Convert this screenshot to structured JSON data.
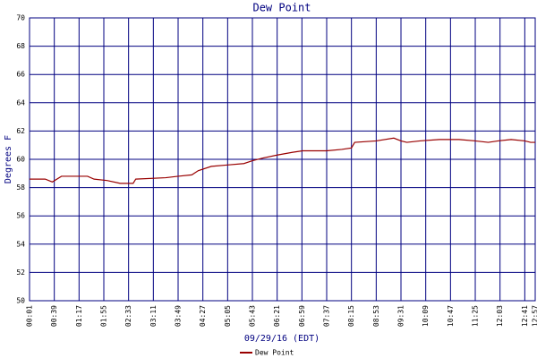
{
  "chart_data": {
    "type": "line",
    "title": "Dew Point",
    "y_label": "Degrees F",
    "x_label": "09/29/16 (EDT)",
    "x": [
      1,
      25,
      36,
      50,
      90,
      100,
      120,
      140,
      160,
      164,
      210,
      229,
      250,
      260,
      280,
      305,
      330,
      343,
      360,
      381,
      405,
      420,
      457,
      480,
      495,
      500,
      533,
      560,
      571,
      580,
      600,
      630,
      660,
      685,
      705,
      720,
      740,
      761,
      770,
      777
    ],
    "series": [
      {
        "name": "Dew Point",
        "color": "#990000",
        "values": [
          58.6,
          58.6,
          58.4,
          58.8,
          58.8,
          58.6,
          58.5,
          58.3,
          58.3,
          58.6,
          58.7,
          58.8,
          58.9,
          59.2,
          59.5,
          59.6,
          59.7,
          59.9,
          60.1,
          60.3,
          60.5,
          60.6,
          60.6,
          60.7,
          60.8,
          61.2,
          61.3,
          61.5,
          61.3,
          61.2,
          61.3,
          61.4,
          61.4,
          61.3,
          61.2,
          61.3,
          61.4,
          61.3,
          61.2,
          61.2
        ]
      }
    ],
    "xlim": [
      1,
      777
    ],
    "xticks": [
      {
        "value": 1,
        "label": "00:01"
      },
      {
        "value": 39,
        "label": "00:39"
      },
      {
        "value": 77,
        "label": "01:17"
      },
      {
        "value": 115,
        "label": "01:55"
      },
      {
        "value": 153,
        "label": "02:33"
      },
      {
        "value": 191,
        "label": "03:11"
      },
      {
        "value": 229,
        "label": "03:49"
      },
      {
        "value": 267,
        "label": "04:27"
      },
      {
        "value": 305,
        "label": "05:05"
      },
      {
        "value": 343,
        "label": "05:43"
      },
      {
        "value": 381,
        "label": "06:21"
      },
      {
        "value": 419,
        "label": "06:59"
      },
      {
        "value": 457,
        "label": "07:37"
      },
      {
        "value": 495,
        "label": "08:15"
      },
      {
        "value": 533,
        "label": "08:53"
      },
      {
        "value": 571,
        "label": "09:31"
      },
      {
        "value": 609,
        "label": "10:09"
      },
      {
        "value": 647,
        "label": "10:47"
      },
      {
        "value": 685,
        "label": "11:25"
      },
      {
        "value": 723,
        "label": "12:03"
      },
      {
        "value": 761,
        "label": "12:41"
      },
      {
        "value": 777,
        "label": "12:57"
      }
    ],
    "ylim": [
      50,
      70
    ],
    "yticks": [
      50,
      52,
      54,
      56,
      58,
      60,
      62,
      64,
      66,
      68,
      70
    ],
    "grid": true
  }
}
